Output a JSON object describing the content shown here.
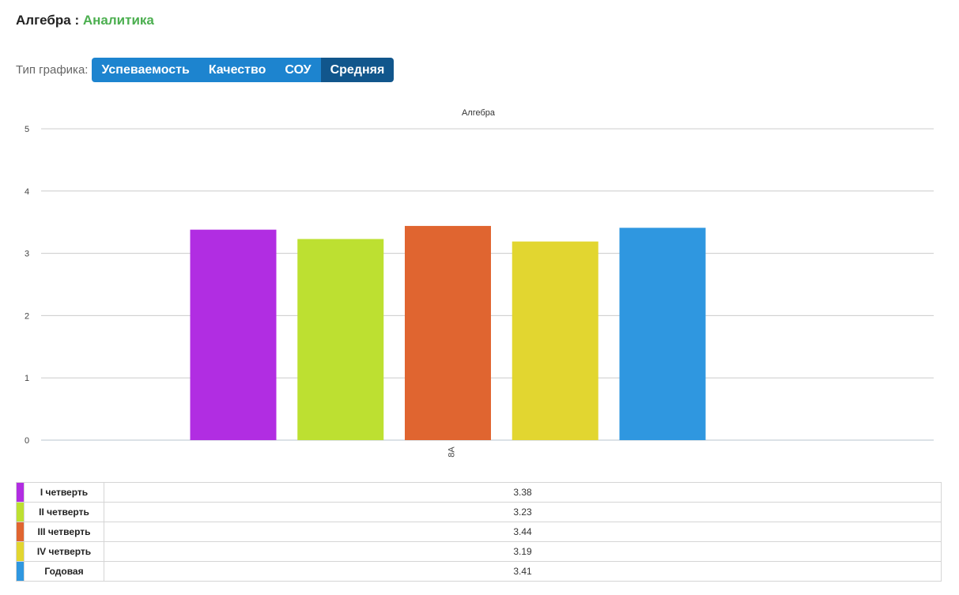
{
  "header": {
    "subject": "Алгебра",
    "separator": ":",
    "section": "Аналитика"
  },
  "toolbar": {
    "label": "Тип графика:",
    "buttons": [
      {
        "label": "Успеваемость",
        "active": false
      },
      {
        "label": "Качество",
        "active": false
      },
      {
        "label": "СОУ",
        "active": false
      },
      {
        "label": "Средняя",
        "active": true
      }
    ]
  },
  "chart_data": {
    "type": "bar",
    "title": "Алгебра",
    "categories": [
      "8А"
    ],
    "ylim": [
      0,
      5
    ],
    "yticks": [
      0,
      1,
      2,
      3,
      4,
      5
    ],
    "grid": true,
    "series": [
      {
        "name": "I четверть",
        "color": "#b12de2",
        "values": [
          3.38
        ]
      },
      {
        "name": "II четверть",
        "color": "#bde031",
        "values": [
          3.23
        ]
      },
      {
        "name": "III четверть",
        "color": "#e06530",
        "values": [
          3.44
        ]
      },
      {
        "name": "IV четверть",
        "color": "#e2d630",
        "values": [
          3.19
        ]
      },
      {
        "name": "Годовая",
        "color": "#2f97e0",
        "values": [
          3.41
        ]
      }
    ]
  }
}
